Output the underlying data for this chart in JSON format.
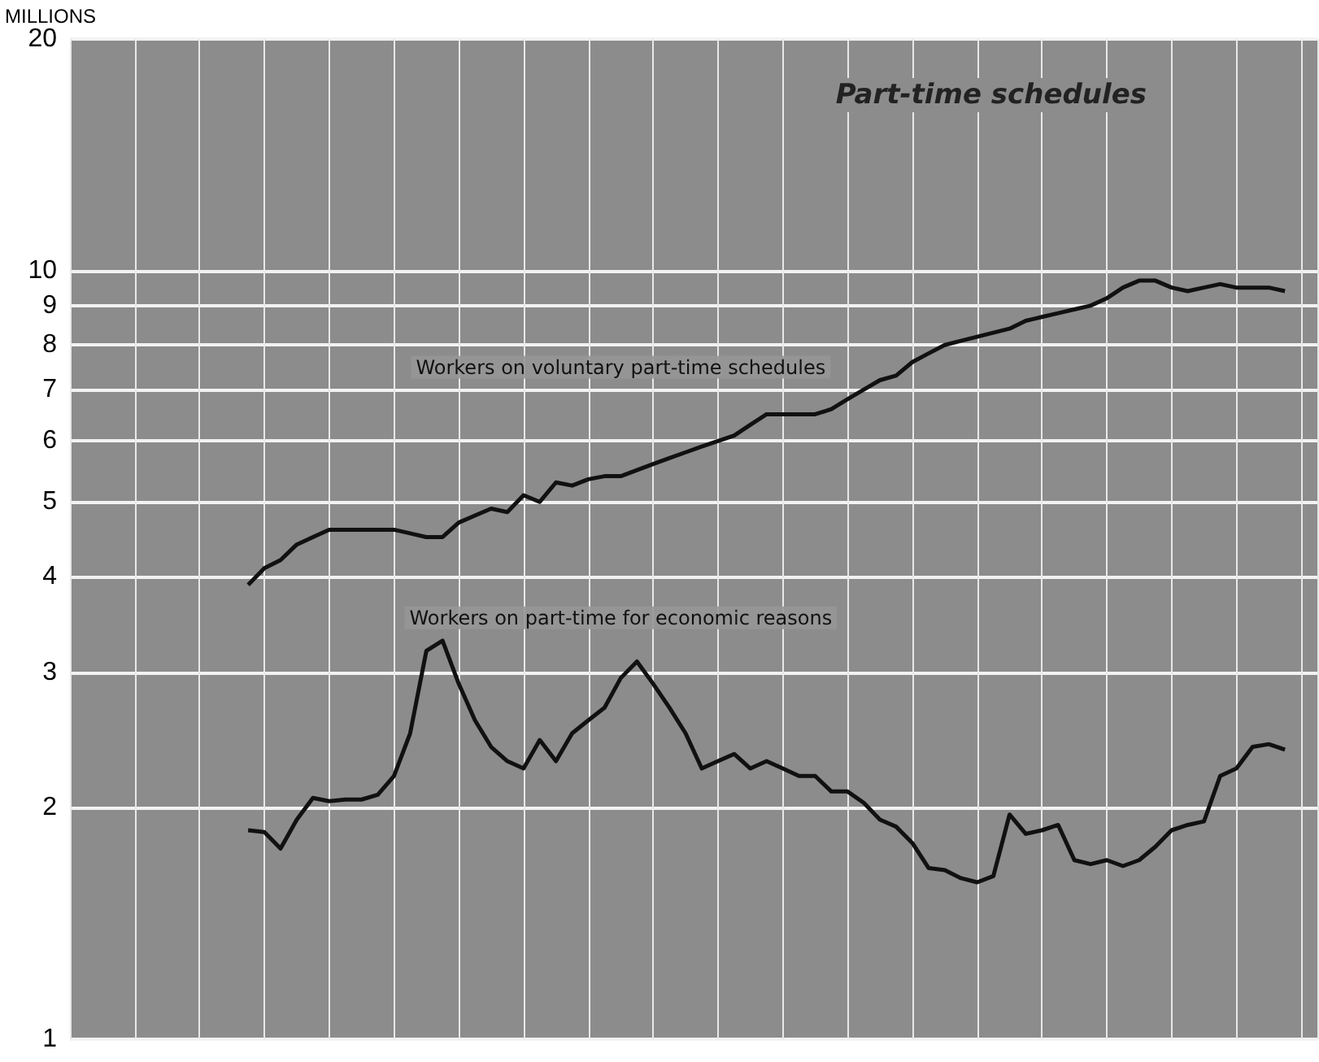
{
  "chart_data": {
    "type": "line",
    "title": "Part-time schedules",
    "ylabel": "MILLIONS",
    "categories": [
      null,
      null,
      null,
      null,
      null,
      null,
      null,
      null,
      null,
      null,
      null,
      null,
      null,
      null,
      null,
      null,
      null,
      null,
      null,
      null,
      null,
      null,
      null,
      null,
      null,
      null,
      null,
      null,
      null,
      null,
      null,
      null,
      null,
      null,
      null,
      null,
      null,
      null,
      null,
      null,
      null,
      null,
      null,
      null,
      null,
      null,
      null,
      null,
      null,
      null,
      null,
      null,
      null,
      null,
      null,
      null,
      null,
      null,
      null,
      null,
      null,
      null,
      null,
      null,
      null,
      null,
      null,
      null,
      null,
      null,
      null,
      null,
      null,
      null,
      null,
      null,
      null,
      null
    ],
    "series": [
      {
        "name": "Workers on voluntary part-time schedules",
        "color": "#111111",
        "values": [
          null,
          null,
          null,
          null,
          null,
          null,
          null,
          null,
          null,
          null,
          null,
          3.9,
          4.1,
          4.2,
          4.4,
          4.5,
          4.6,
          4.6,
          4.6,
          4.6,
          4.6,
          4.55,
          4.5,
          4.5,
          4.7,
          4.8,
          4.9,
          4.85,
          5.1,
          5.0,
          5.3,
          5.25,
          5.35,
          5.4,
          5.4,
          5.5,
          5.6,
          5.7,
          5.8,
          5.9,
          6.0,
          6.1,
          6.3,
          6.5,
          6.5,
          6.5,
          6.5,
          6.6,
          6.8,
          7.0,
          7.2,
          7.3,
          7.6,
          7.8,
          8.0,
          8.1,
          8.2,
          8.3,
          8.4,
          8.6,
          8.7,
          8.8,
          8.9,
          9.0,
          9.2,
          9.5,
          9.7,
          9.7,
          9.5,
          9.4,
          9.5,
          9.6,
          9.5,
          9.5,
          9.5,
          9.4,
          null,
          null
        ]
      },
      {
        "name": "Workers on part-time for economic reasons",
        "color": "#111111",
        "values": [
          null,
          null,
          null,
          null,
          null,
          null,
          null,
          null,
          null,
          null,
          null,
          1.87,
          1.86,
          1.77,
          1.93,
          2.06,
          2.04,
          2.05,
          2.05,
          2.08,
          2.2,
          2.5,
          3.2,
          3.3,
          2.9,
          2.6,
          2.4,
          2.3,
          2.25,
          2.45,
          2.3,
          2.5,
          2.6,
          2.7,
          2.95,
          3.1,
          2.9,
          2.7,
          2.5,
          2.25,
          2.3,
          2.35,
          2.25,
          2.3,
          2.25,
          2.2,
          2.2,
          2.1,
          2.1,
          2.03,
          1.93,
          1.89,
          1.8,
          1.67,
          1.66,
          1.62,
          1.6,
          1.63,
          1.96,
          1.85,
          1.87,
          1.9,
          1.71,
          1.69,
          1.71,
          1.68,
          1.71,
          1.78,
          1.87,
          1.9,
          1.92,
          2.2,
          2.25,
          2.4,
          2.42,
          2.38,
          null,
          null
        ]
      }
    ],
    "log": true,
    "ylim": [
      1,
      20
    ],
    "yticks": [
      1,
      2,
      3,
      4,
      5,
      6,
      7,
      8,
      9,
      10,
      20
    ],
    "grid": true,
    "tick_labels": "y",
    "marker": "none",
    "line_style": "solid"
  }
}
